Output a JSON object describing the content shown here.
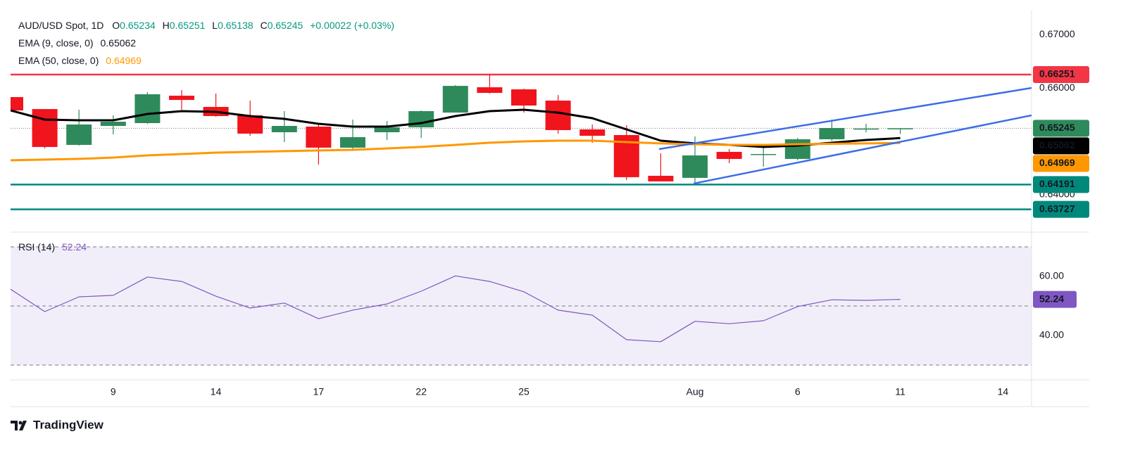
{
  "chart_data": {
    "type": "candlestick",
    "title": "AUD/USD Spot, 1D",
    "ohlc_labels": [
      "O",
      "H",
      "L",
      "C"
    ],
    "change": "+0.00022 (+0.03%)",
    "categories": [
      null,
      null,
      null,
      "9",
      null,
      null,
      "14",
      null,
      null,
      "17",
      null,
      null,
      "22",
      null,
      null,
      "25",
      null,
      null,
      null,
      null,
      "Aug",
      null,
      null,
      "6",
      null,
      null,
      "11",
      null,
      null,
      "14"
    ],
    "open": [
      0.65829,
      0.65605,
      0.64934,
      0.65289,
      0.65342,
      0.65855,
      0.65645,
      0.65487,
      0.65171,
      0.65276,
      0.64882,
      0.65171,
      0.65263,
      0.65539,
      0.66013,
      0.65974,
      0.65763,
      0.65224,
      0.65118,
      0.64355,
      0.64316,
      0.64803,
      0.6475,
      0.64671,
      0.65039,
      0.6523,
      0.65234,
      null,
      null,
      null
    ],
    "high": [
      0.65829,
      0.65605,
      0.65592,
      0.65487,
      0.65921,
      0.65961,
      0.65895,
      0.65763,
      0.65566,
      0.65316,
      0.65408,
      0.65382,
      0.65579,
      0.66053,
      0.6625,
      0.65987,
      0.65868,
      0.65316,
      0.65303,
      0.64776,
      0.65092,
      0.64855,
      0.64895,
      0.65066,
      0.65408,
      0.6533,
      0.65251,
      null,
      null,
      null
    ],
    "low": [
      0.65579,
      0.64868,
      0.64921,
      0.65132,
      0.65329,
      0.65592,
      0.65461,
      0.65105,
      0.64987,
      0.64566,
      0.64855,
      0.65026,
      0.65066,
      0.65539,
      0.65895,
      0.65539,
      0.65145,
      0.64974,
      0.64276,
      0.6425,
      0.64224,
      0.64592,
      0.64526,
      0.64645,
      0.65013,
      0.6517,
      0.65138,
      null,
      null,
      null
    ],
    "close": [
      0.65579,
      0.64895,
      0.65316,
      0.65368,
      0.65882,
      0.65776,
      0.65474,
      0.65145,
      0.65289,
      0.64882,
      0.65079,
      0.65263,
      0.65566,
      0.66039,
      0.65908,
      0.65671,
      0.65211,
      0.65105,
      0.64329,
      0.6425,
      0.64737,
      0.64671,
      0.64763,
      0.65039,
      0.6525,
      0.6524,
      0.65245,
      null,
      null,
      null
    ],
    "up_color": "#2f8a5b",
    "down_color": "#f0141c",
    "indicators": [
      {
        "name": "EMA (9, close, 0)",
        "color": "#000000",
        "values": [
          0.65579,
          0.65408,
          0.65395,
          0.65395,
          0.65513,
          0.65566,
          0.65553,
          0.65474,
          0.65421,
          0.65329,
          0.65276,
          0.65276,
          0.65342,
          0.65474,
          0.65566,
          0.65592,
          0.65539,
          0.65434,
          0.65224,
          0.65013,
          0.64961,
          0.64934,
          0.64895,
          0.64921,
          0.64974,
          0.65026,
          0.65062,
          null,
          null,
          null
        ]
      },
      {
        "name": "EMA (50, close, 0)",
        "color": "#ff9800",
        "values": [
          0.64645,
          0.64658,
          0.64671,
          0.64697,
          0.64737,
          0.64763,
          0.64789,
          0.64803,
          0.64816,
          0.64829,
          0.64842,
          0.64868,
          0.64895,
          0.64934,
          0.64974,
          0.65,
          0.65013,
          0.65013,
          0.64987,
          0.64961,
          0.64947,
          0.64934,
          0.64934,
          0.64947,
          0.64955,
          0.64961,
          0.64969,
          null,
          null,
          null
        ]
      }
    ],
    "hlines": [
      {
        "value": 0.66251,
        "color": "#f23645"
      },
      {
        "value": 0.64191,
        "color": "#00897b"
      },
      {
        "value": 0.63727,
        "color": "#00897b"
      }
    ],
    "ylim": [
      0.633,
      0.6745
    ],
    "yticks": [
      {
        "value": 0.67,
        "label": "0.67000"
      },
      {
        "value": 0.66,
        "label": "0.66000"
      },
      {
        "value": 0.64,
        "label": "0.64000"
      }
    ],
    "rsi": {
      "type": "line",
      "name": "RSI (14)",
      "color": "#7e57c2",
      "values": [
        55.7,
        48.1,
        53.1,
        53.6,
        59.8,
        58.3,
        53.3,
        49.3,
        51.0,
        45.7,
        48.6,
        50.7,
        55.0,
        60.2,
        58.3,
        54.8,
        48.6,
        46.9,
        38.6,
        37.9,
        44.8,
        44.0,
        45.0,
        49.8,
        52.1,
        51.9,
        52.24,
        null,
        null,
        null
      ],
      "ylim": [
        25,
        75
      ],
      "yticks": [
        {
          "value": 60,
          "label": "60.00"
        },
        {
          "value": 40,
          "label": "40.00"
        }
      ],
      "bands": [
        70,
        50,
        30
      ]
    },
    "brand": "TradingView"
  }
}
